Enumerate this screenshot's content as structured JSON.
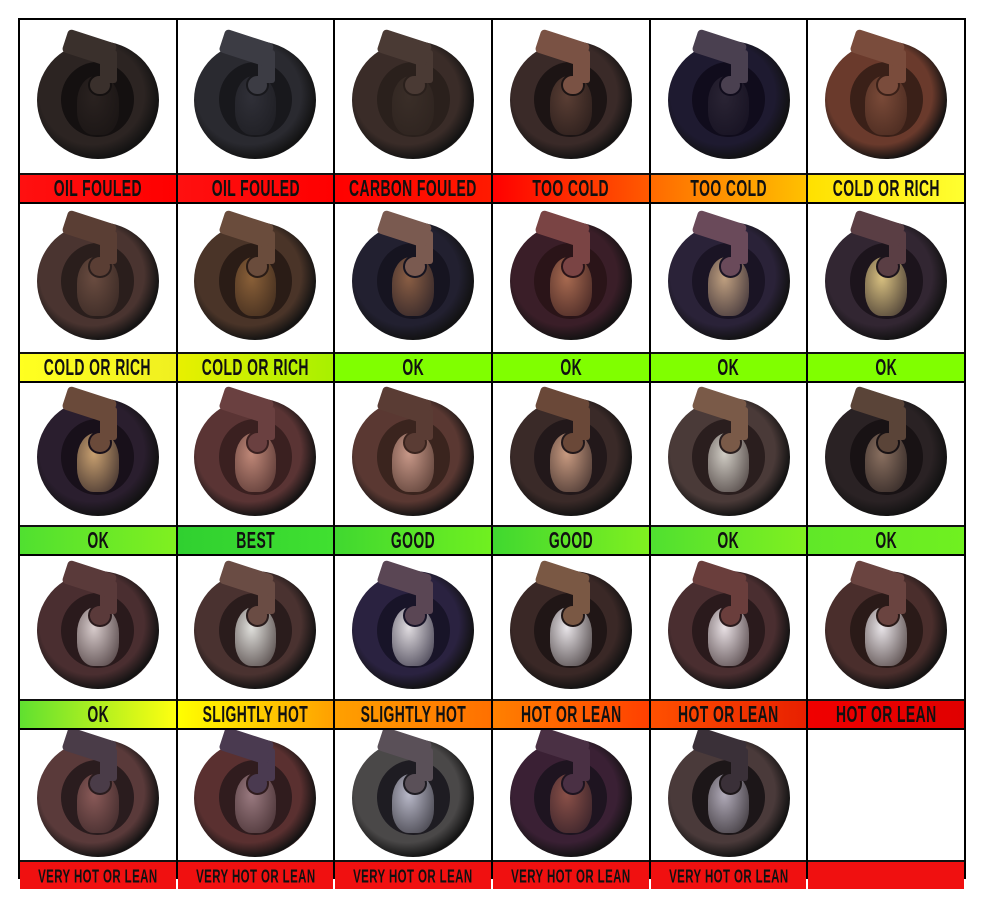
{
  "cells": [
    {
      "label": "OIL FOULED",
      "bg": [
        "#ff1010",
        "#ff0000"
      ],
      "plug": {
        "body": "#2c2422",
        "hole": "#141010",
        "ins": "#2a2220",
        "elec": "#3a302c"
      }
    },
    {
      "label": "OIL FOULED",
      "bg": [
        "#ff1010",
        "#ff0000"
      ],
      "plug": {
        "body": "#2a2a30",
        "hole": "#18181c",
        "ins": "#303038",
        "elec": "#3c3c44"
      }
    },
    {
      "label": "CARBON FOULED",
      "bg": [
        "#ff0000",
        "#ff1a00"
      ],
      "plug": {
        "body": "#3a2c28",
        "hole": "#2a201c",
        "ins": "#3a2e28",
        "elec": "#4a3a34"
      }
    },
    {
      "label": "TOO COLD",
      "bg": [
        "#ff0000",
        "#ff5a00"
      ],
      "plug": {
        "body": "#3a2a28",
        "hole": "#1c1414",
        "ins": "#5a3e34",
        "elec": "#7a5244"
      }
    },
    {
      "label": "TOO COLD",
      "bg": [
        "#ff6a00",
        "#ffc000"
      ],
      "plug": {
        "body": "#1e1a30",
        "hole": "#100c1c",
        "ins": "#2a2434",
        "elec": "#4a4050"
      }
    },
    {
      "label": "COLD OR RICH",
      "bg": [
        "#ffe000",
        "#ffff30"
      ],
      "plug": {
        "body": "#6a3a2c",
        "hole": "#3a2018",
        "ins": "#7a4a38",
        "elec": "#7a4c3c"
      }
    },
    {
      "label": "COLD OR RICH",
      "bg": [
        "#ffff20",
        "#f0f020"
      ],
      "plug": {
        "body": "#4a3430",
        "hole": "#2a1e1c",
        "ins": "#6a4c40",
        "elec": "#5a3e34"
      }
    },
    {
      "label": "COLD OR RICH",
      "bg": [
        "#e8f000",
        "#a8f000"
      ],
      "plug": {
        "body": "#4a3428",
        "hole": "#2a1c16",
        "ins": "#8a6038",
        "elec": "#6a4c3c"
      }
    },
    {
      "label": "OK",
      "bg": [
        "#80ff00",
        "#80ff00"
      ],
      "plug": {
        "body": "#222030",
        "hole": "#161420",
        "ins": "#8a5e44",
        "elec": "#7a5a50"
      }
    },
    {
      "label": "OK",
      "bg": [
        "#80ff00",
        "#80ff00"
      ],
      "plug": {
        "body": "#3a1e28",
        "hole": "#2a1418",
        "ins": "#a86a50",
        "elec": "#7a4444"
      }
    },
    {
      "label": "OK",
      "bg": [
        "#80ff00",
        "#80ff00"
      ],
      "plug": {
        "body": "#2a2238",
        "hole": "#1a1424",
        "ins": "#c0a080",
        "elec": "#6a4a5a"
      }
    },
    {
      "label": "OK",
      "bg": [
        "#80ff00",
        "#80ff00"
      ],
      "plug": {
        "body": "#322632",
        "hole": "#1c141c",
        "ins": "#d8c080",
        "elec": "#5a3e44"
      }
    },
    {
      "label": "OK",
      "bg": [
        "#50e030",
        "#80f020"
      ],
      "plug": {
        "body": "#2a1e2e",
        "hole": "#18101a",
        "ins": "#c8a070",
        "elec": "#6a4a3a"
      }
    },
    {
      "label": "BEST",
      "bg": [
        "#30d030",
        "#40e030"
      ],
      "plug": {
        "body": "#5a3434",
        "hole": "#3a2020",
        "ins": "#c08878",
        "elec": "#6a4040"
      }
    },
    {
      "label": "GOOD",
      "bg": [
        "#40d830",
        "#70f020"
      ],
      "plug": {
        "body": "#5a3832",
        "hole": "#3a241e",
        "ins": "#c89888",
        "elec": "#5a3c34"
      }
    },
    {
      "label": "GOOD",
      "bg": [
        "#40d830",
        "#80f020"
      ],
      "plug": {
        "body": "#3a2a28",
        "hole": "#22181a",
        "ins": "#c89a80",
        "elec": "#6a4838"
      }
    },
    {
      "label": "OK",
      "bg": [
        "#50e030",
        "#80f020"
      ],
      "plug": {
        "body": "#4a3a38",
        "hole": "#2a1e1e",
        "ins": "#d0ccc4",
        "elec": "#7a5a48"
      }
    },
    {
      "label": "OK",
      "bg": [
        "#60e828",
        "#70f020"
      ],
      "plug": {
        "body": "#2a2224",
        "hole": "#181214",
        "ins": "#8a7060",
        "elec": "#5a4438"
      }
    },
    {
      "label": "OK",
      "bg": [
        "#60e030",
        "#ffff10"
      ],
      "plug": {
        "body": "#4a2e30",
        "hole": "#2a1a1c",
        "ins": "#d8cccc",
        "elec": "#5a3a3a"
      }
    },
    {
      "label": "SLIGHTLY HOT",
      "bg": [
        "#ffff00",
        "#ffa000"
      ],
      "plug": {
        "body": "#4a3230",
        "hole": "#2a1c1c",
        "ins": "#e0e0dc",
        "elec": "#6a4c44"
      }
    },
    {
      "label": "SLIGHTLY HOT",
      "bg": [
        "#ffa000",
        "#ff7000"
      ],
      "plug": {
        "body": "#2a2240",
        "hole": "#181428",
        "ins": "#e0dce0",
        "elec": "#5a4654"
      }
    },
    {
      "label": "HOT OR LEAN",
      "bg": [
        "#ff8000",
        "#ff4000"
      ],
      "plug": {
        "body": "#3a2826",
        "hole": "#201616",
        "ins": "#e8e4e8",
        "elec": "#7a5844"
      }
    },
    {
      "label": "HOT OR LEAN",
      "bg": [
        "#ff5000",
        "#e82000"
      ],
      "plug": {
        "body": "#4a2e30",
        "hole": "#2a1a1c",
        "ins": "#e8e0e4",
        "elec": "#6a3e3c"
      }
    },
    {
      "label": "HOT OR LEAN",
      "bg": [
        "#f00000",
        "#e00000"
      ],
      "plug": {
        "body": "#4a2e2c",
        "hole": "#2a1a18",
        "ins": "#e8e4e8",
        "elec": "#6a4440"
      }
    },
    {
      "label": "VERY HOT OR LEAN",
      "bg": [
        "#f01010",
        "#f01010"
      ],
      "plug": {
        "body": "#5a3a3a",
        "hole": "#2a1c1e",
        "ins": "#8a5a58",
        "elec": "#4a3c48"
      }
    },
    {
      "label": "VERY HOT OR LEAN",
      "bg": [
        "#f01010",
        "#f01010"
      ],
      "plug": {
        "body": "#5a3030",
        "hole": "#301c1e",
        "ins": "#9a7a80",
        "elec": "#4a3a50"
      }
    },
    {
      "label": "VERY HOT OR LEAN",
      "bg": [
        "#f01010",
        "#f01010"
      ],
      "plug": {
        "body": "#4a4848",
        "hole": "#1e1c22",
        "ins": "#b8b8c8",
        "elec": "#5a5058"
      }
    },
    {
      "label": "VERY HOT OR LEAN",
      "bg": [
        "#f01010",
        "#f01010"
      ],
      "plug": {
        "body": "#3a2034",
        "hole": "#1e1420",
        "ins": "#8a5048",
        "elec": "#4a3044"
      }
    },
    {
      "label": "VERY HOT OR LEAN",
      "bg": [
        "#f01010",
        "#f01010"
      ],
      "plug": {
        "body": "#4a3a3a",
        "hole": "#1c1618",
        "ins": "#b0aab8",
        "elec": "#3a3038"
      }
    },
    {
      "label": "",
      "bg": [
        "#f01010",
        "#f01010"
      ],
      "plug": null
    }
  ]
}
